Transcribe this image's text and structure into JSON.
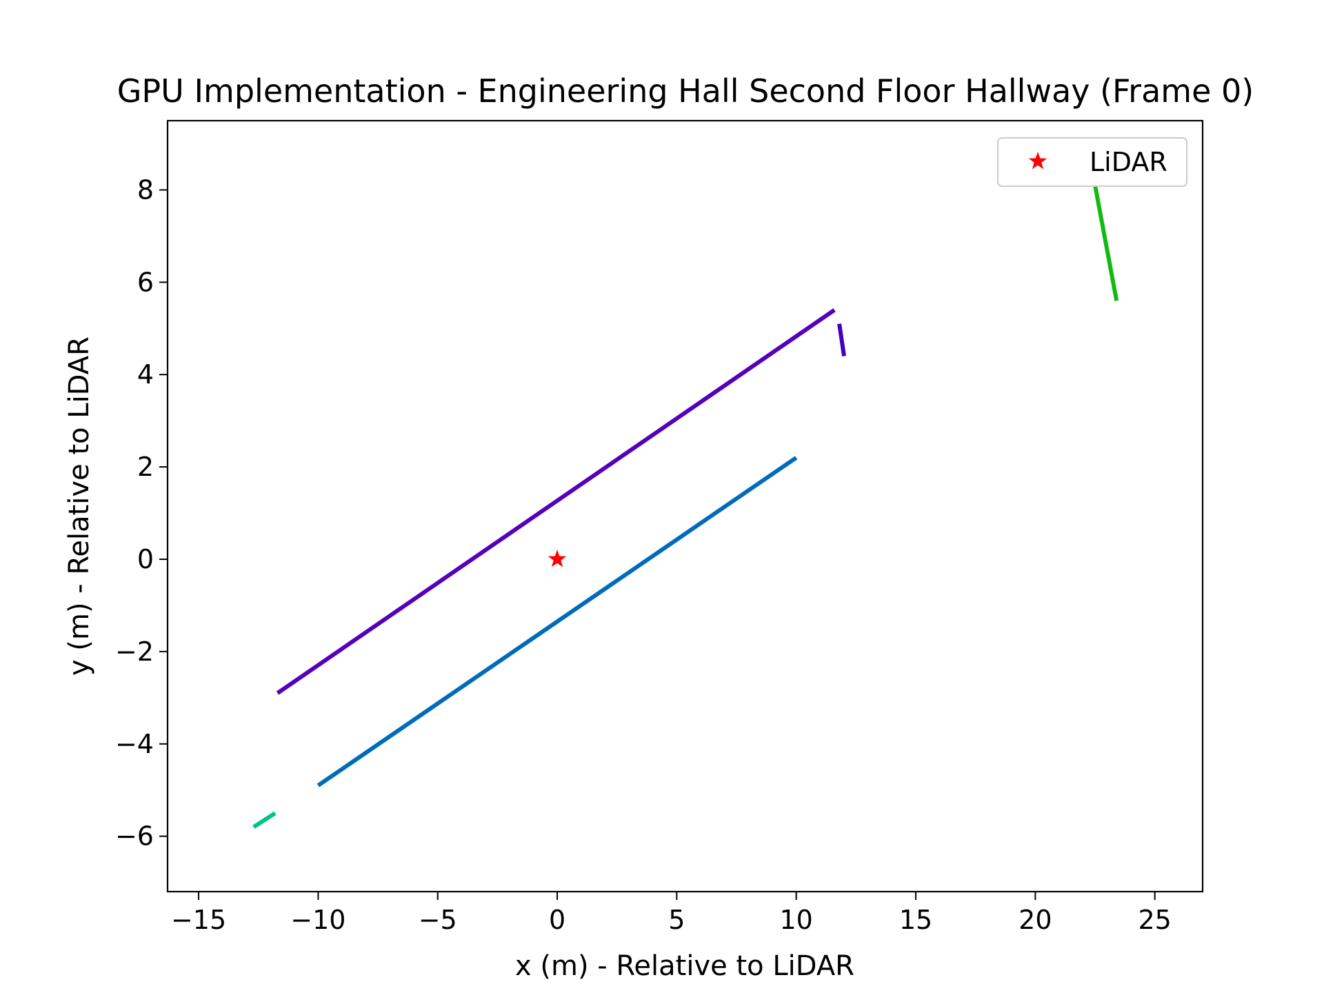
{
  "chart_data": {
    "type": "line",
    "title": "GPU Implementation - Engineering Hall Second Floor Hallway (Frame 0)",
    "xlabel": "x (m) - Relative to LiDAR",
    "ylabel": "y (m) - Relative to LiDAR",
    "xlim": [
      -16.3,
      27.0
    ],
    "ylim": [
      -7.2,
      9.5
    ],
    "xticks": [
      -15,
      -10,
      -5,
      0,
      5,
      10,
      15,
      20,
      25
    ],
    "yticks": [
      -6,
      -4,
      -2,
      0,
      2,
      4,
      6,
      8
    ],
    "xtick_labels": [
      "−15",
      "−10",
      "−5",
      "0",
      "5",
      "10",
      "15",
      "20",
      "25"
    ],
    "ytick_labels": [
      "−6",
      "−4",
      "−2",
      "0",
      "2",
      "4",
      "6",
      "8"
    ],
    "grid": false,
    "legend": {
      "placement": "upper right",
      "entries": [
        "LiDAR"
      ]
    },
    "segments": [
      {
        "color": "#5500bb",
        "x": [
          -11.7,
          11.6
        ],
        "y": [
          -2.9,
          5.4
        ]
      },
      {
        "color": "#4400bb",
        "x": [
          11.8,
          12.0
        ],
        "y": [
          5.1,
          4.4
        ]
      },
      {
        "color": "#006bbb",
        "x": [
          -10.0,
          10.0
        ],
        "y": [
          -4.9,
          2.2
        ]
      },
      {
        "color": "#00c488",
        "x": [
          -12.7,
          -11.8
        ],
        "y": [
          -5.8,
          -5.5
        ]
      },
      {
        "color": "#11bb11",
        "x": [
          22.5,
          23.4
        ],
        "y": [
          8.1,
          5.6
        ]
      }
    ],
    "points": [
      {
        "name": "LiDAR",
        "x": 0,
        "y": 0,
        "marker": "star",
        "color": "#ff0000"
      }
    ]
  }
}
